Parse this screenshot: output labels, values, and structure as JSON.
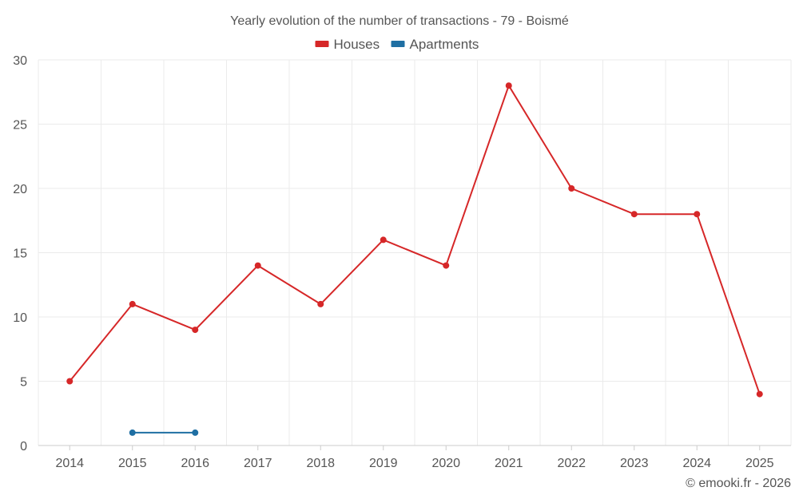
{
  "chart_data": {
    "type": "line",
    "title": "Yearly evolution of the number of transactions - 79 - Boismé",
    "xlabel": "",
    "ylabel": "",
    "categories": [
      "2014",
      "2015",
      "2016",
      "2017",
      "2018",
      "2019",
      "2020",
      "2021",
      "2022",
      "2023",
      "2024",
      "2025"
    ],
    "ylim": [
      0,
      30
    ],
    "yticks": [
      0,
      5,
      10,
      15,
      20,
      25,
      30
    ],
    "grid": true,
    "legend_position": "top-center",
    "series": [
      {
        "name": "Houses",
        "color": "#d62728",
        "values": [
          5,
          11,
          9,
          14,
          11,
          16,
          14,
          28,
          20,
          18,
          18,
          4
        ]
      },
      {
        "name": "Apartments",
        "color": "#1f6fa3",
        "values": [
          null,
          1,
          1,
          null,
          null,
          null,
          null,
          null,
          null,
          null,
          null,
          null
        ]
      }
    ]
  },
  "credit": "© emooki.fr - 2026"
}
